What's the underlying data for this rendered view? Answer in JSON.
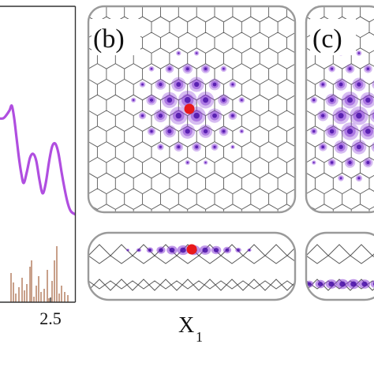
{
  "panels": {
    "b": {
      "label": "(b)"
    },
    "c": {
      "label": "(c)"
    }
  },
  "spectrum": {
    "x_tick_label": "2.5"
  },
  "x_axis_label": {
    "main": "X",
    "sub": "1"
  },
  "colors": {
    "lattice": "#5a5a5a",
    "border": "#9a9a9a",
    "density": "#8a3fd6",
    "density_dark": "#4a12a8",
    "defect_marker": "#e8191b",
    "spectrum_line": "#b04ee0",
    "stick_spectrum": "#c8a08a"
  }
}
